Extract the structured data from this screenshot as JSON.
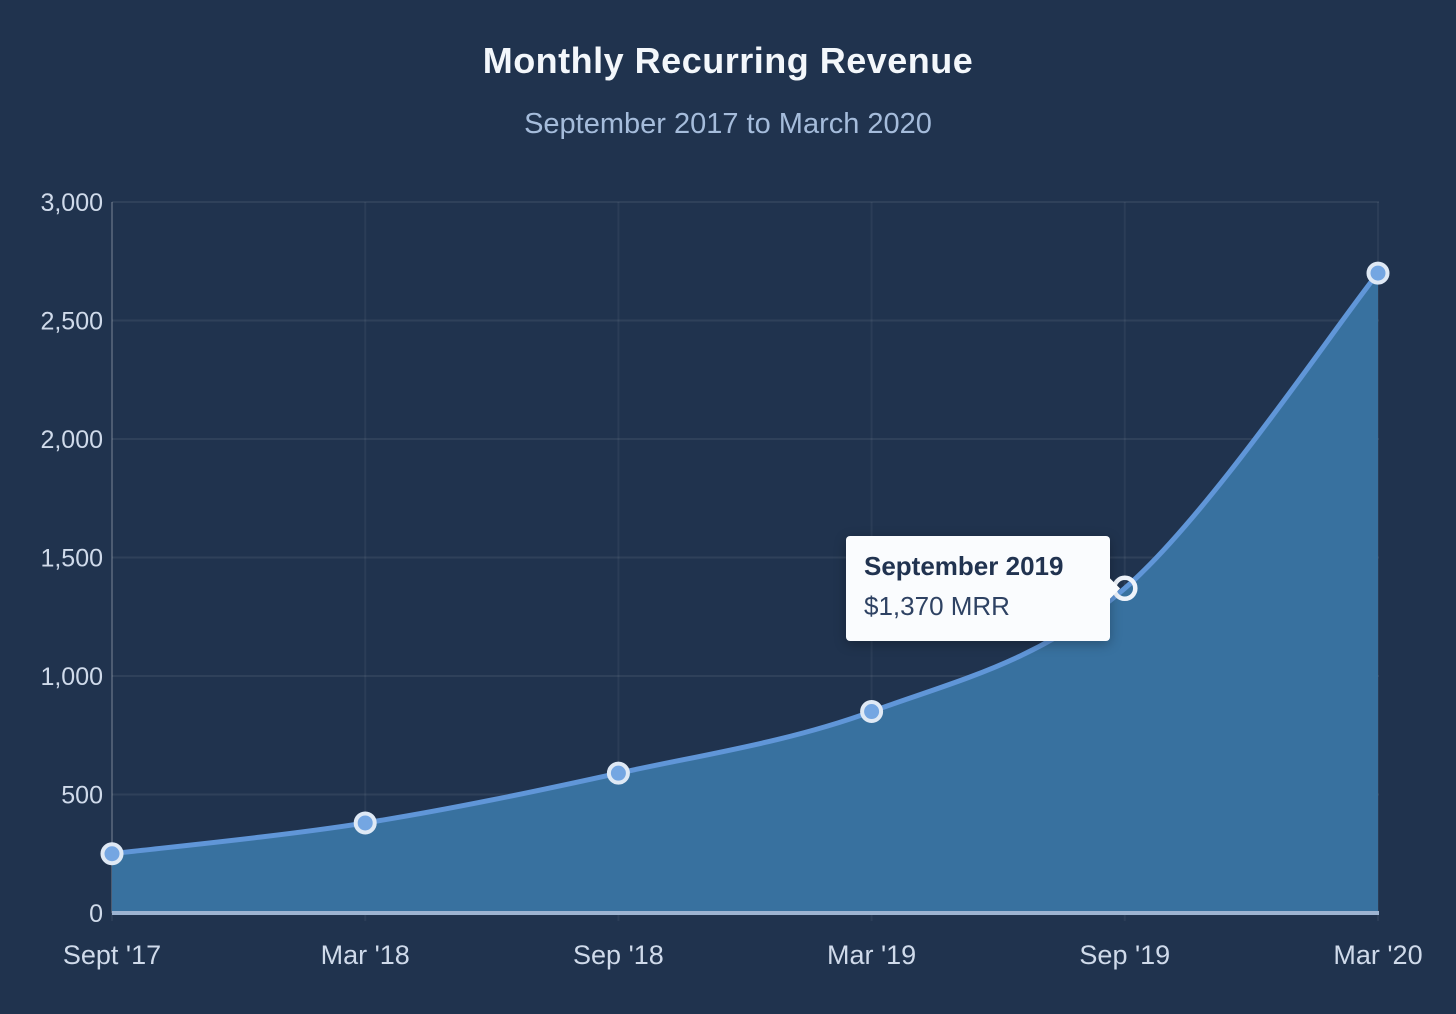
{
  "header": {
    "title": "Monthly Recurring Revenue",
    "subtitle": "September 2017 to March 2020"
  },
  "tooltip": {
    "title": "September 2019",
    "value": "$1,370 MRR",
    "highlighted_point": "Sep '19"
  },
  "chart_data": {
    "type": "area",
    "title": "Monthly Recurring Revenue",
    "subtitle": "September 2017 to March 2020",
    "categories": [
      "Sept '17",
      "Mar '18",
      "Sep '18",
      "Mar '19",
      "Sep '19",
      "Mar '20"
    ],
    "series": [
      {
        "name": "MRR",
        "values": [
          250,
          380,
          590,
          850,
          1370,
          2700
        ]
      }
    ],
    "y_ticks": [
      "0",
      "500",
      "1,000",
      "1,500",
      "2,000",
      "2,500",
      "3,000"
    ],
    "y_tick_values": [
      0,
      500,
      1000,
      1500,
      2000,
      2500,
      3000
    ],
    "ylim": [
      0,
      3000
    ],
    "grid": true,
    "legend": "none",
    "annotations": [
      {
        "category": "Sep '19",
        "value": 1370,
        "label": "September 2019",
        "text": "$1,370 MRR"
      }
    ],
    "colors": {
      "background": "#20334e",
      "line": "#6096d8",
      "area": "#38719f",
      "marker_fill": "#74a6e2",
      "marker_ring": "#dfe9f5",
      "highlight_ring": "#eef3fa",
      "zero_line": "#9db4d2",
      "axis_line": "rgba(255,255,255,0.16)",
      "grid_line": "rgba(255,255,255,0.07)",
      "grid_line_vertical": "rgba(255,255,255,0.05)",
      "title": "#f3f7fb",
      "subtitle": "#a5bcdb",
      "tick_label": "#cfdaea",
      "tooltip_bg": "#fafcfe",
      "tooltip_title": "#213350",
      "tooltip_value": "#2e4263"
    }
  }
}
